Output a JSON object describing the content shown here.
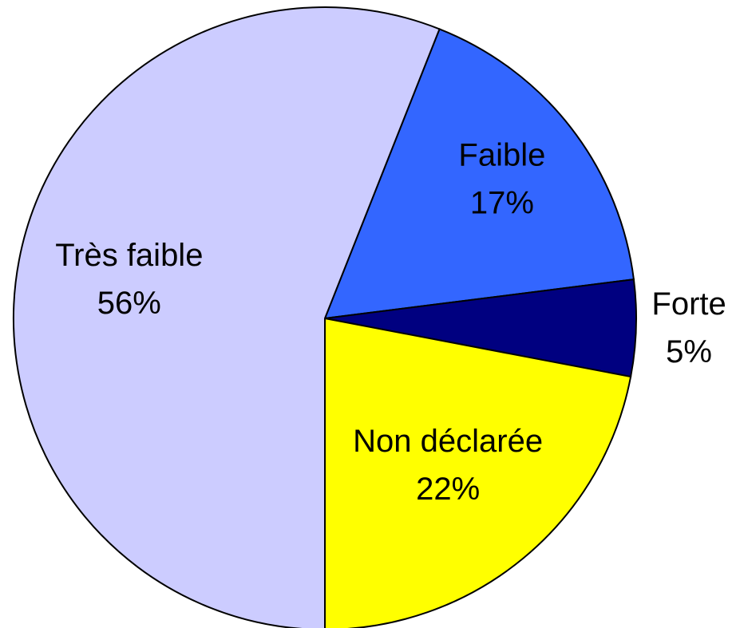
{
  "chart_data": {
    "type": "pie",
    "categories": [
      "Faible",
      "Forte",
      "Non déclarée",
      "Très faible"
    ],
    "values": [
      17,
      5,
      22,
      56
    ],
    "value_labels": [
      "17%",
      "5%",
      "22%",
      "56%"
    ],
    "colors": [
      "#3366ff",
      "#000080",
      "#ffff00",
      "#ccccff"
    ]
  }
}
